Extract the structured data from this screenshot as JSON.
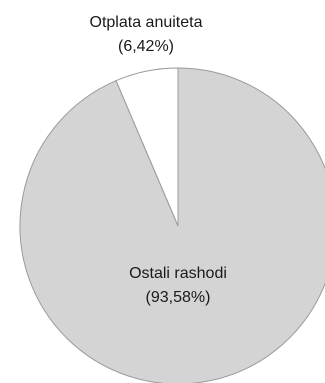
{
  "chart_data": {
    "type": "pie",
    "slices": [
      {
        "label": "Otplata anuiteta",
        "value_label": "(6,42%)",
        "value": 6.42,
        "color": "#ffffff"
      },
      {
        "label": "Ostali rashodi",
        "value_label": "(93,58%)",
        "value": 93.58,
        "color": "#d4d4d4"
      }
    ],
    "stroke_color": "#9a9a9a",
    "start_angle": "12 o'clock",
    "direction": "counterclockwise"
  }
}
